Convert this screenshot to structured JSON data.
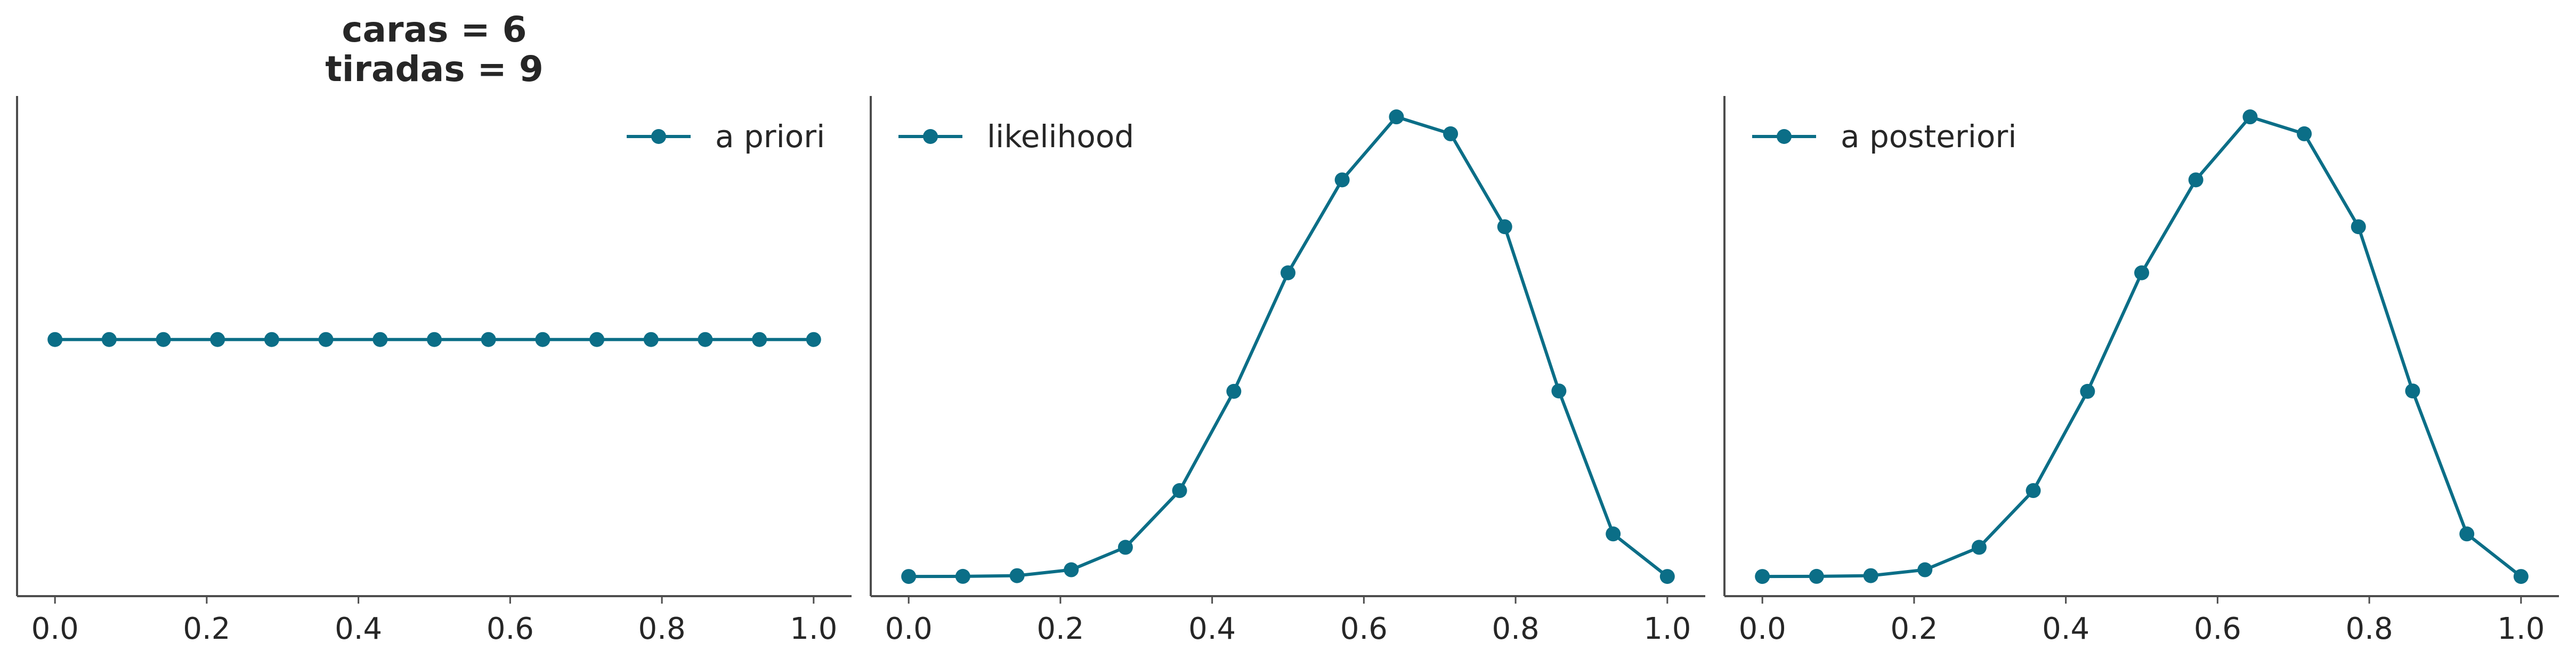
{
  "header": {
    "title_line1": "caras = 6",
    "title_line2": "tiradas = 9"
  },
  "style": {
    "line_color": "#0b6e87",
    "axis_color": "#4d4d4d",
    "text_color": "#262626"
  },
  "chart_data": [
    {
      "type": "line",
      "legend": "a priori",
      "legend_position": "top-right",
      "x": [
        0.0,
        0.0714,
        0.1429,
        0.2143,
        0.2857,
        0.3571,
        0.4286,
        0.5,
        0.5714,
        0.6429,
        0.7143,
        0.7857,
        0.8571,
        0.9286,
        1.0
      ],
      "y": [
        0.0667,
        0.0667,
        0.0667,
        0.0667,
        0.0667,
        0.0667,
        0.0667,
        0.0667,
        0.0667,
        0.0667,
        0.0667,
        0.0667,
        0.0667,
        0.0667,
        0.0667
      ],
      "xlim": [
        -0.05,
        1.05
      ],
      "ylim": [
        0,
        0.13
      ],
      "xticks": [
        "0.0",
        "0.2",
        "0.4",
        "0.6",
        "0.8",
        "1.0"
      ],
      "yticks": [],
      "grid": false
    },
    {
      "type": "line",
      "legend": "likelihood",
      "legend_position": "top-left",
      "x": [
        0.0,
        0.0714,
        0.1429,
        0.2143,
        0.2857,
        0.3571,
        0.4286,
        0.5,
        0.5714,
        0.6429,
        0.7143,
        0.7857,
        0.8571,
        0.9286,
        1.0
      ],
      "y": [
        0.0,
        2e-05,
        0.0002,
        0.0017,
        0.0074,
        0.0218,
        0.047,
        0.0771,
        0.1007,
        0.1167,
        0.1124,
        0.0888,
        0.0471,
        0.0108,
        0.0
      ],
      "xlim": [
        -0.05,
        1.05
      ],
      "ylim": [
        -0.005,
        0.122
      ],
      "xticks": [
        "0.0",
        "0.2",
        "0.4",
        "0.6",
        "0.8",
        "1.0"
      ],
      "yticks": [],
      "grid": false
    },
    {
      "type": "line",
      "legend": "a posteriori",
      "legend_position": "top-left",
      "x": [
        0.0,
        0.0714,
        0.1429,
        0.2143,
        0.2857,
        0.3571,
        0.4286,
        0.5,
        0.5714,
        0.6429,
        0.7143,
        0.7857,
        0.8571,
        0.9286,
        1.0
      ],
      "y": [
        0.0,
        2e-05,
        0.0002,
        0.0017,
        0.0074,
        0.0218,
        0.047,
        0.0771,
        0.1007,
        0.1167,
        0.1124,
        0.0888,
        0.0471,
        0.0108,
        0.0
      ],
      "xlim": [
        -0.05,
        1.05
      ],
      "ylim": [
        -0.005,
        0.122
      ],
      "xticks": [
        "0.0",
        "0.2",
        "0.4",
        "0.6",
        "0.8",
        "1.0"
      ],
      "yticks": [],
      "grid": false
    }
  ]
}
